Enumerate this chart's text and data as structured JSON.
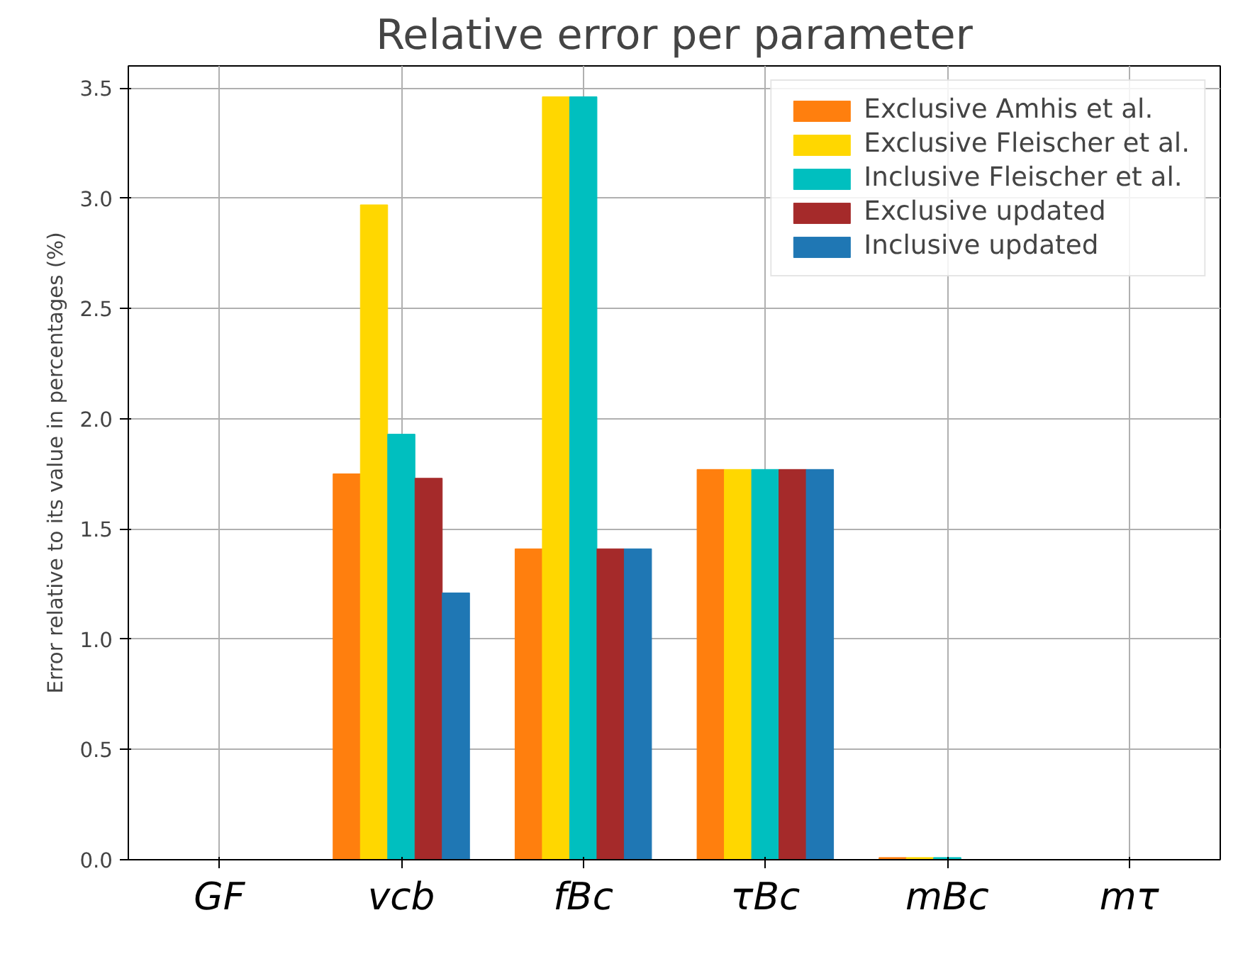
{
  "chart_data": {
    "type": "bar",
    "title": "Relative error per parameter",
    "ylabel": "Error relative to its value in percentages (%)",
    "categories": [
      "GF",
      "vcb",
      "fBc",
      "τBc",
      "mBc",
      "mτ"
    ],
    "series": [
      {
        "name": "Exclusive Amhis et al.",
        "color": "#ff7f0e",
        "values": [
          0,
          1.75,
          1.41,
          1.77,
          0.01,
          0
        ]
      },
      {
        "name": "Exclusive Fleischer et al.",
        "color": "#ffd700",
        "values": [
          0,
          2.97,
          3.46,
          1.77,
          0.01,
          0
        ]
      },
      {
        "name": "Inclusive Fleischer et al.",
        "color": "#00bfbf",
        "values": [
          0,
          1.93,
          3.46,
          1.77,
          0.01,
          0
        ]
      },
      {
        "name": "Exclusive updated",
        "color": "#a52a2a",
        "values": [
          0,
          1.73,
          1.41,
          1.77,
          0,
          0
        ]
      },
      {
        "name": "Inclusive updated",
        "color": "#1f77b4",
        "values": [
          0,
          1.21,
          1.41,
          1.77,
          0,
          0
        ]
      }
    ],
    "ylim": [
      0,
      3.6
    ],
    "yticks": [
      {
        "value": 0,
        "label": "0.0"
      },
      0.5,
      {
        "value": 1,
        "label": "1.0"
      },
      1.5,
      {
        "value": 2,
        "label": "2.0"
      },
      2.5,
      {
        "value": 3,
        "label": "3.0"
      },
      3.5
    ],
    "grid": true,
    "legend": "top right"
  }
}
